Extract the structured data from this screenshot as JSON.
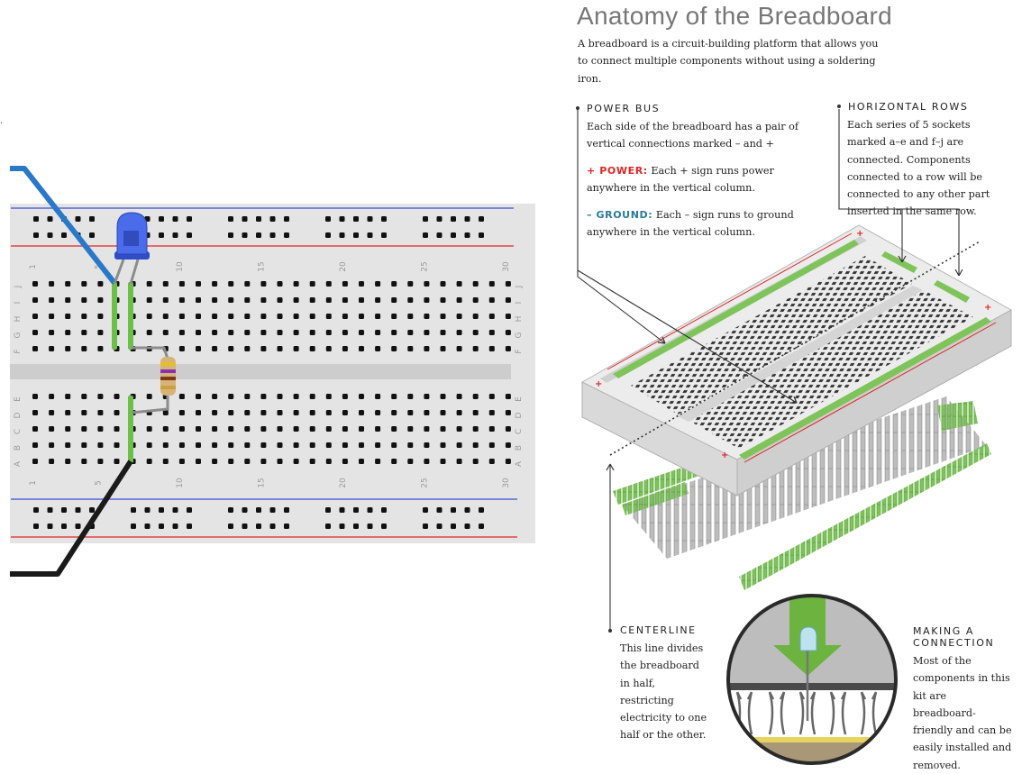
{
  "title": "Anatomy of the Breadboard",
  "intro": "A breadboard is a circuit-building platform that allows you to connect multiple components without using a soldering iron.",
  "power_bus": {
    "heading": "POWER BUS",
    "text": "Each side of the breadboard has a pair of vertical connections marked – and +",
    "power_label": "+ POWER:",
    "power_text": "Each + sign runs power anywhere in the vertical column.",
    "ground_label": "– GROUND:",
    "ground_text": "Each – sign runs to ground anywhere in the vertical column."
  },
  "horizontal_rows": {
    "heading": "HORIZONTAL ROWS",
    "text": "Each series of 5 sockets marked a–e and f–j are connected. Components connected to a row will be connected to any other part inserted in the same row."
  },
  "centerline": {
    "heading": "CENTERLINE",
    "text": "This line divides the breadboard in half, restricting electricity to one half or the other."
  },
  "making_connection": {
    "heading_line1": "MAKING A",
    "heading_line2": "CONNECTION",
    "text": "Most of the components in this kit are breadboard-friendly and can be easily installed and removed."
  },
  "board": {
    "column_numbers": [
      "1",
      "5",
      "10",
      "15",
      "20",
      "25",
      "30"
    ],
    "row_letters_top": [
      "J",
      "I",
      "H",
      "G",
      "F"
    ],
    "row_letters_bottom": [
      "E",
      "D",
      "C",
      "B",
      "A"
    ],
    "plus_sign": "+",
    "stray_mark": "."
  },
  "colors": {
    "led": "#3b5cd6",
    "wire_power": "#2a78c8",
    "wire_ground": "#1a1a1a",
    "highlight": "#6cc04a",
    "rail_red": "#e02424",
    "rail_blue": "#3a4fd0",
    "board": "#e4e4e4"
  }
}
